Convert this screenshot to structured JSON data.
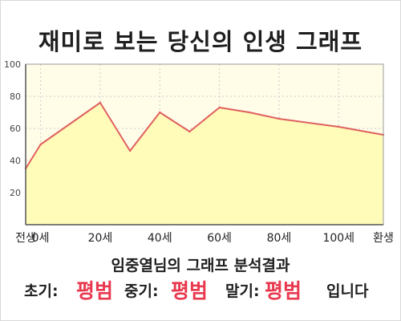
{
  "title": "재미로 보는 당신의 인생 그래프",
  "result": {
    "heading": "임중열님의 그래프 분석결과",
    "early_label": "초기:",
    "early_value": "평범",
    "middle_label": "중기:",
    "middle_value": "평범",
    "late_label": "말기:",
    "late_value": "평범",
    "closing": "입니다"
  },
  "colors": {
    "line": "#e06060",
    "fill": "#fffbb8",
    "plot_background": "#fffde8",
    "grid": "#cccccc",
    "result_value": "#e8394f"
  },
  "chart_data": {
    "type": "area",
    "title": "재미로 보는 당신의 인생 그래프",
    "x": [
      -5,
      0,
      20,
      30,
      40,
      50,
      60,
      70,
      80,
      100,
      115
    ],
    "y": [
      35,
      50,
      76,
      46,
      70,
      58,
      73,
      70,
      66,
      61,
      56
    ],
    "xlim": [
      -5,
      115
    ],
    "ylim": [
      0,
      100
    ],
    "x_ticks": [
      {
        "value": -5,
        "label": "전생"
      },
      {
        "value": 0,
        "label": "0세"
      },
      {
        "value": 20,
        "label": "20세"
      },
      {
        "value": 40,
        "label": "40세"
      },
      {
        "value": 60,
        "label": "60세"
      },
      {
        "value": 80,
        "label": "80세"
      },
      {
        "value": 100,
        "label": "100세"
      },
      {
        "value": 115,
        "label": "환생"
      }
    ],
    "y_ticks": [
      {
        "value": 20,
        "label": "20"
      },
      {
        "value": 40,
        "label": "40"
      },
      {
        "value": 60,
        "label": "60"
      },
      {
        "value": 80,
        "label": "80"
      },
      {
        "value": 100,
        "label": "100"
      }
    ],
    "grid": true,
    "legend": false
  }
}
